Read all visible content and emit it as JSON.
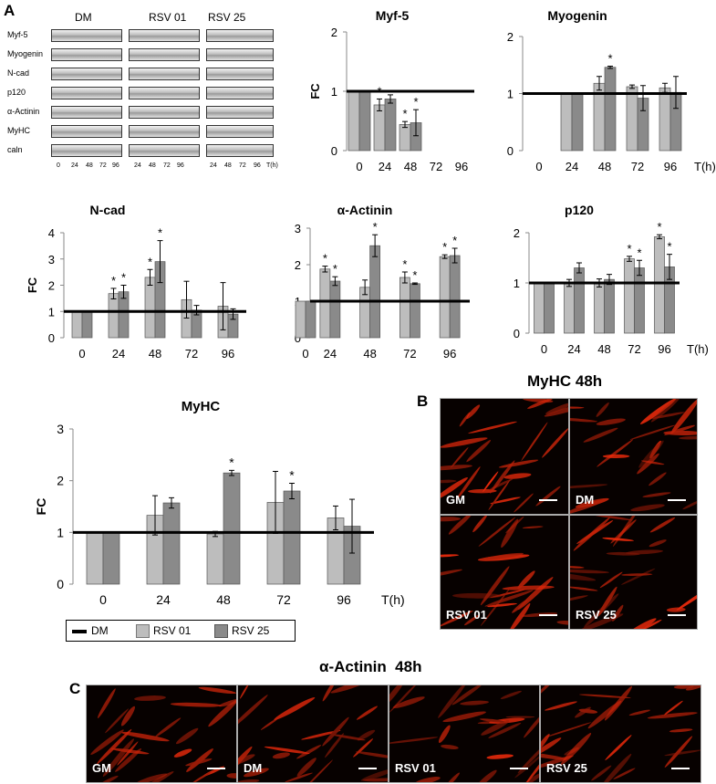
{
  "panel_labels": {
    "a": "A",
    "b": "B",
    "c": "C"
  },
  "blot": {
    "groups": [
      "DM",
      "RSV 01",
      "RSV 25"
    ],
    "proteins": [
      "Myf-5",
      "Myogenin",
      "N-cad",
      "p120",
      "α-Actinin",
      "MyHC",
      "caln"
    ],
    "time_ticks": [
      "0",
      "24",
      "48",
      "72",
      "96",
      "24",
      "48",
      "72",
      "96",
      "24",
      "48",
      "72",
      "96"
    ],
    "time_unit": "T(h)"
  },
  "legend": {
    "items": [
      "DM",
      "RSV 01",
      "RSV 25"
    ]
  },
  "colors": {
    "dm": "#000000",
    "rsv01": "#bdbdbd",
    "rsv25": "#8a8a8a",
    "micro_signal": "#d01f10"
  },
  "chart_data": [
    {
      "id": "myf5",
      "type": "bar",
      "title": "Myf-5",
      "ylabel": "FC",
      "xlabel": "",
      "categories": [
        "0",
        "24",
        "48",
        "72",
        "96"
      ],
      "ylim": [
        0,
        2
      ],
      "yticks": [
        "0",
        "1",
        "2"
      ],
      "reference_line": 1,
      "series": [
        {
          "name": "RSV 01",
          "values": [
            1,
            0.77,
            0.44,
            null,
            null
          ],
          "errors": [
            0,
            0.1,
            0.05,
            0,
            0
          ],
          "significant": [
            false,
            true,
            true,
            false,
            false
          ]
        },
        {
          "name": "RSV 25",
          "values": [
            1,
            0.87,
            0.47,
            null,
            null
          ],
          "errors": [
            0,
            0.07,
            0.22,
            0,
            0
          ],
          "significant": [
            false,
            false,
            true,
            false,
            false
          ]
        }
      ]
    },
    {
      "id": "myogenin",
      "type": "bar",
      "title": "Myogenin",
      "ylabel": "",
      "xlabel": "T(h)",
      "categories": [
        "0",
        "24",
        "48",
        "72",
        "96"
      ],
      "ylim": [
        0,
        2
      ],
      "yticks": [
        "0",
        "1",
        "2"
      ],
      "reference_line": 1,
      "series": [
        {
          "name": "RSV 01",
          "values": [
            null,
            1,
            1.18,
            1.12,
            1.1
          ],
          "errors": [
            0,
            0,
            0.12,
            0.03,
            0.08
          ],
          "significant": [
            false,
            false,
            false,
            false,
            false
          ]
        },
        {
          "name": "RSV 25",
          "values": [
            null,
            1,
            1.46,
            0.92,
            1.02
          ],
          "errors": [
            0,
            0,
            0.02,
            0.22,
            0.28
          ],
          "significant": [
            false,
            false,
            true,
            false,
            false
          ]
        }
      ]
    },
    {
      "id": "ncad",
      "type": "bar",
      "title": "N-cad",
      "ylabel": "FC",
      "xlabel": "",
      "categories": [
        "0",
        "24",
        "48",
        "72",
        "96"
      ],
      "ylim": [
        0,
        4
      ],
      "yticks": [
        "0",
        "1",
        "2",
        "3",
        "4"
      ],
      "reference_line": 1,
      "series": [
        {
          "name": "RSV 01",
          "values": [
            1,
            1.68,
            2.3,
            1.45,
            1.2
          ],
          "errors": [
            0,
            0.2,
            0.3,
            0.7,
            0.9
          ],
          "significant": [
            false,
            true,
            true,
            false,
            false
          ]
        },
        {
          "name": "RSV 25",
          "values": [
            1,
            1.75,
            2.9,
            1.05,
            0.9
          ],
          "errors": [
            0,
            0.25,
            0.8,
            0.18,
            0.2
          ],
          "significant": [
            false,
            true,
            true,
            false,
            false
          ]
        }
      ]
    },
    {
      "id": "actinin",
      "type": "bar",
      "title": "α-Actinin",
      "ylabel": "",
      "xlabel": "",
      "categories": [
        "24",
        "48",
        "72",
        "96"
      ],
      "ylim": [
        0,
        3
      ],
      "yticks": [
        "0",
        "1",
        "2",
        "3"
      ],
      "reference_line": 1,
      "zero_bar_label": "0",
      "series": [
        {
          "name": "RSV 01",
          "values": [
            1.88,
            1.38,
            1.65,
            2.22
          ],
          "errors": [
            0.08,
            0.2,
            0.15,
            0.05
          ],
          "significant": [
            true,
            false,
            true,
            true
          ]
        },
        {
          "name": "RSV 25",
          "values": [
            1.55,
            2.52,
            1.48,
            2.25
          ],
          "errors": [
            0.12,
            0.3,
            0.02,
            0.2
          ],
          "significant": [
            true,
            true,
            true,
            true
          ]
        }
      ]
    },
    {
      "id": "p120",
      "type": "bar",
      "title": "p120",
      "ylabel": "",
      "xlabel": "T(h)",
      "categories": [
        "0",
        "24",
        "48",
        "72",
        "96"
      ],
      "ylim": [
        0,
        2
      ],
      "yticks": [
        "0",
        "1",
        "2"
      ],
      "reference_line": 1,
      "series": [
        {
          "name": "RSV 01",
          "values": [
            1,
            1,
            1.0,
            1.48,
            1.92
          ],
          "errors": [
            0,
            0.07,
            0.08,
            0.05,
            0.04
          ],
          "significant": [
            false,
            false,
            false,
            true,
            true
          ]
        },
        {
          "name": "RSV 25",
          "values": [
            1,
            1.3,
            1.07,
            1.3,
            1.32
          ],
          "errors": [
            0,
            0.1,
            0.1,
            0.15,
            0.25
          ],
          "significant": [
            false,
            false,
            false,
            true,
            true
          ]
        }
      ]
    },
    {
      "id": "myhc",
      "type": "bar",
      "title": "MyHC",
      "ylabel": "FC",
      "xlabel": "T(h)",
      "categories": [
        "0",
        "24",
        "48",
        "72",
        "96"
      ],
      "ylim": [
        0,
        3
      ],
      "yticks": [
        "0",
        "1",
        "2",
        "3"
      ],
      "reference_line": 1,
      "series": [
        {
          "name": "RSV 01",
          "values": [
            1,
            1.33,
            0.97,
            1.58,
            1.28
          ],
          "errors": [
            0,
            0.38,
            0.05,
            0.6,
            0.23
          ],
          "significant": [
            false,
            false,
            false,
            false,
            false
          ]
        },
        {
          "name": "RSV 25",
          "values": [
            1,
            1.57,
            2.15,
            1.8,
            1.12
          ],
          "errors": [
            0,
            0.1,
            0.05,
            0.15,
            0.52
          ],
          "significant": [
            false,
            false,
            true,
            true,
            false
          ]
        }
      ]
    }
  ],
  "micrographs_b": {
    "title": "MyHC 48h",
    "panels": [
      "GM",
      "DM",
      "RSV 01",
      "RSV 25"
    ]
  },
  "micrographs_c": {
    "title": "α-Actinin  48h",
    "panels": [
      "GM",
      "DM",
      "RSV 01",
      "RSV 25"
    ]
  }
}
